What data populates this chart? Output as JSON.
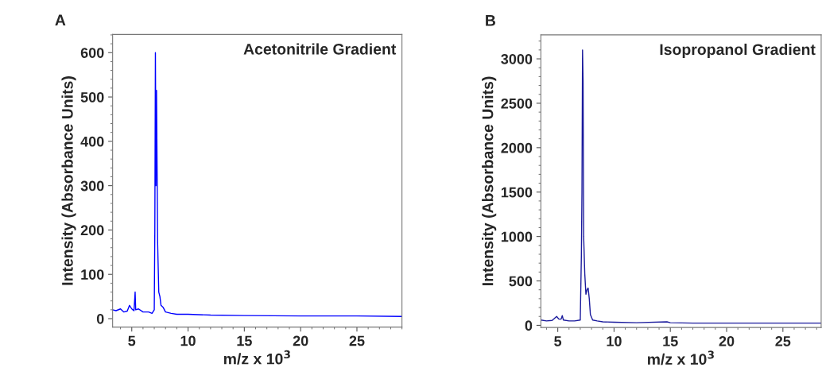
{
  "chart_data": [
    {
      "type": "line",
      "annotations": [
        "A",
        "Acetonitrile Gradient"
      ],
      "xlabel": "m/z x 10$^{3}$",
      "ylabel": "Intensity (Absorbance Units)",
      "xlim": [
        3.3,
        29
      ],
      "xticks": [
        5,
        10,
        15,
        20,
        25
      ],
      "ylim": [
        -19,
        641
      ],
      "yticks": [
        0,
        100,
        200,
        300,
        400,
        500,
        600
      ],
      "grid": false,
      "legend": false,
      "series": [
        {
          "color": "#0000ff",
          "x": [
            3.3,
            3.6,
            4.0,
            4.3,
            4.6,
            4.8,
            5.0,
            5.1,
            5.2,
            5.3,
            5.35,
            5.6,
            6.0,
            6.5,
            6.8,
            7.0,
            7.05,
            7.1,
            7.15,
            7.2,
            7.3,
            7.4,
            7.5,
            7.6,
            7.8,
            8.0,
            8.5,
            9.0,
            10,
            12,
            15,
            20,
            25,
            29
          ],
          "values": [
            20,
            18,
            22,
            15,
            17,
            30,
            22,
            20,
            18,
            60,
            20,
            22,
            15,
            15,
            12,
            20,
            200,
            600,
            300,
            515,
            170,
            60,
            50,
            30,
            25,
            15,
            12,
            10,
            10,
            8,
            7,
            6,
            6,
            5
          ]
        }
      ]
    },
    {
      "type": "line",
      "annotations": [
        "B",
        "Isopropanol Gradient"
      ],
      "xlabel": "m/z x 10$^{3}$",
      "ylabel": "Intensity (Absorbance Units)",
      "xlim": [
        3.5,
        28.4
      ],
      "xticks": [
        5,
        10,
        15,
        20,
        25
      ],
      "ylim": [
        -24,
        3270
      ],
      "yticks": [
        0,
        500,
        1000,
        1500,
        2000,
        2500,
        3000
      ],
      "grid": false,
      "legend": false,
      "series": [
        {
          "color": "#1a1a9c",
          "x": [
            3.5,
            4.0,
            4.5,
            4.9,
            5.1,
            5.3,
            5.4,
            5.5,
            6.0,
            6.5,
            7.0,
            7.1,
            7.15,
            7.2,
            7.25,
            7.3,
            7.4,
            7.5,
            7.6,
            7.7,
            7.8,
            7.9,
            8.1,
            8.5,
            9,
            10,
            12,
            14.7,
            15,
            17,
            20,
            25,
            28.4
          ],
          "values": [
            60,
            50,
            55,
            100,
            70,
            70,
            110,
            60,
            50,
            50,
            60,
            800,
            1500,
            3100,
            2750,
            1000,
            580,
            350,
            400,
            420,
            300,
            120,
            60,
            50,
            40,
            35,
            30,
            40,
            30,
            25,
            25,
            25,
            25
          ]
        }
      ]
    }
  ]
}
